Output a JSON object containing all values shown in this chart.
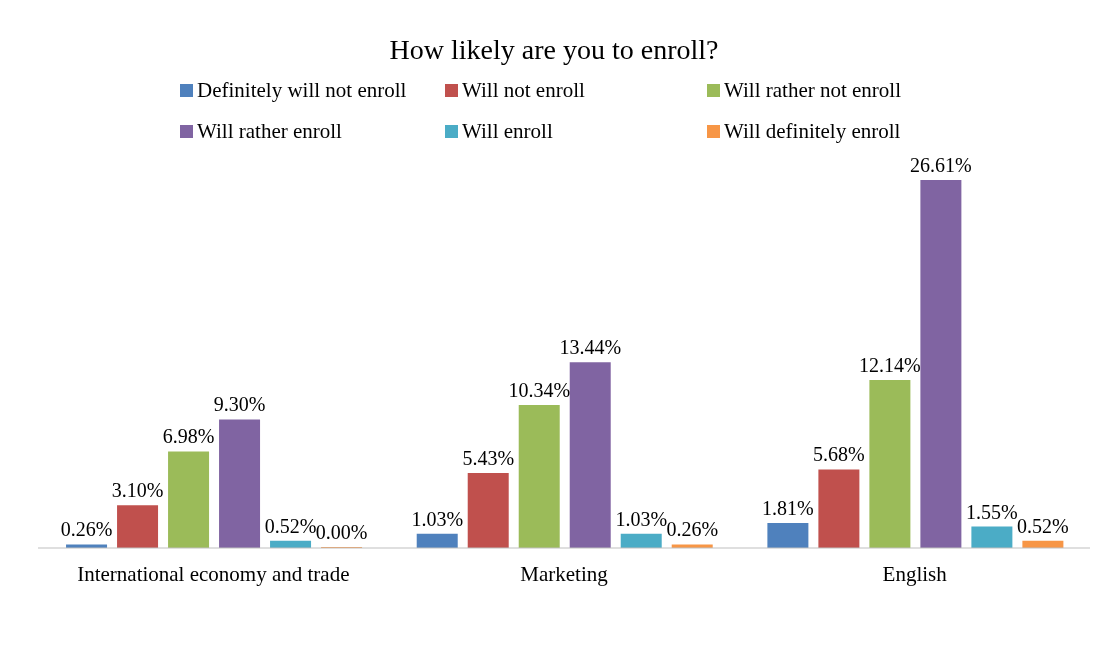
{
  "chart_data": {
    "type": "bar",
    "title": "How likely are you to enroll?",
    "categories": [
      "International economy and trade",
      "Marketing",
      "English"
    ],
    "legend": "top",
    "series": [
      {
        "name": "Definitely will not enroll",
        "color": "#4f81bd",
        "values": [
          0.26,
          1.03,
          1.81
        ],
        "value_labels": [
          "0.26%",
          "1.03%",
          "1.81%"
        ]
      },
      {
        "name": "Will not enroll",
        "color": "#c0504d",
        "values": [
          3.1,
          5.43,
          5.68
        ],
        "value_labels": [
          "3.10%",
          "5.43%",
          "5.68%"
        ]
      },
      {
        "name": "Will rather not enroll",
        "color": "#9bbb59",
        "values": [
          6.98,
          10.34,
          12.14
        ],
        "value_labels": [
          "6.98%",
          "10.34%",
          "12.14%"
        ]
      },
      {
        "name": "Will rather enroll",
        "color": "#8064a2",
        "values": [
          9.3,
          13.44,
          26.61
        ],
        "value_labels": [
          "9.30%",
          "13.44%",
          "26.61%"
        ]
      },
      {
        "name": "Will enroll",
        "color": "#4bacc6",
        "values": [
          0.52,
          1.03,
          1.55
        ],
        "value_labels": [
          "0.52%",
          "1.03%",
          "1.55%"
        ]
      },
      {
        "name": "Will definitely enroll",
        "color": "#f79646",
        "values": [
          0.0,
          0.26,
          0.52
        ],
        "value_labels": [
          "0.00%",
          "0.26%",
          "0.52%"
        ]
      }
    ]
  }
}
